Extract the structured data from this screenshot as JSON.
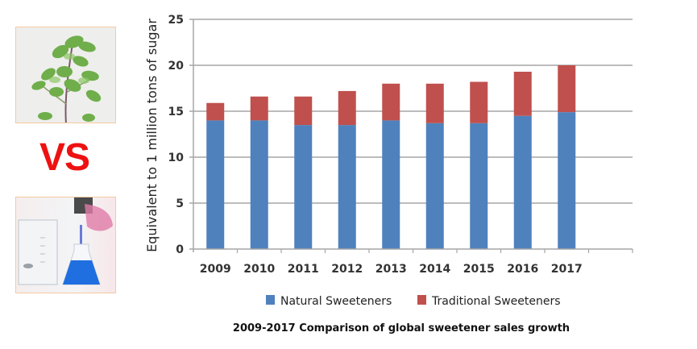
{
  "left_panel": {
    "top_image": "plant-stevia-photo",
    "vs_label": "VS",
    "bottom_image": "lab-glassware-photo"
  },
  "chart_data": {
    "type": "bar",
    "stacked": true,
    "title": "2009-2017 Comparison of global sweetener sales growth",
    "xlabel": "",
    "ylabel": "Equivalent to 1 million tons of sugar",
    "categories": [
      "2009",
      "2010",
      "2011",
      "2012",
      "2013",
      "2014",
      "2015",
      "2016",
      "2017"
    ],
    "series": [
      {
        "name": "Natural Sweeteners",
        "color": "#4f81bd",
        "values": [
          14.0,
          14.0,
          13.5,
          13.5,
          14.0,
          13.7,
          13.7,
          14.5,
          14.9
        ]
      },
      {
        "name": "Traditional Sweeteners",
        "color": "#c0504d",
        "values": [
          1.9,
          2.6,
          3.1,
          3.7,
          4.0,
          4.3,
          4.5,
          4.8,
          5.1
        ]
      }
    ],
    "ylim": [
      0,
      25
    ],
    "yticks": [
      "0",
      "5",
      "10",
      "15",
      "20",
      "25"
    ],
    "grid": true,
    "legend_position": "bottom"
  }
}
